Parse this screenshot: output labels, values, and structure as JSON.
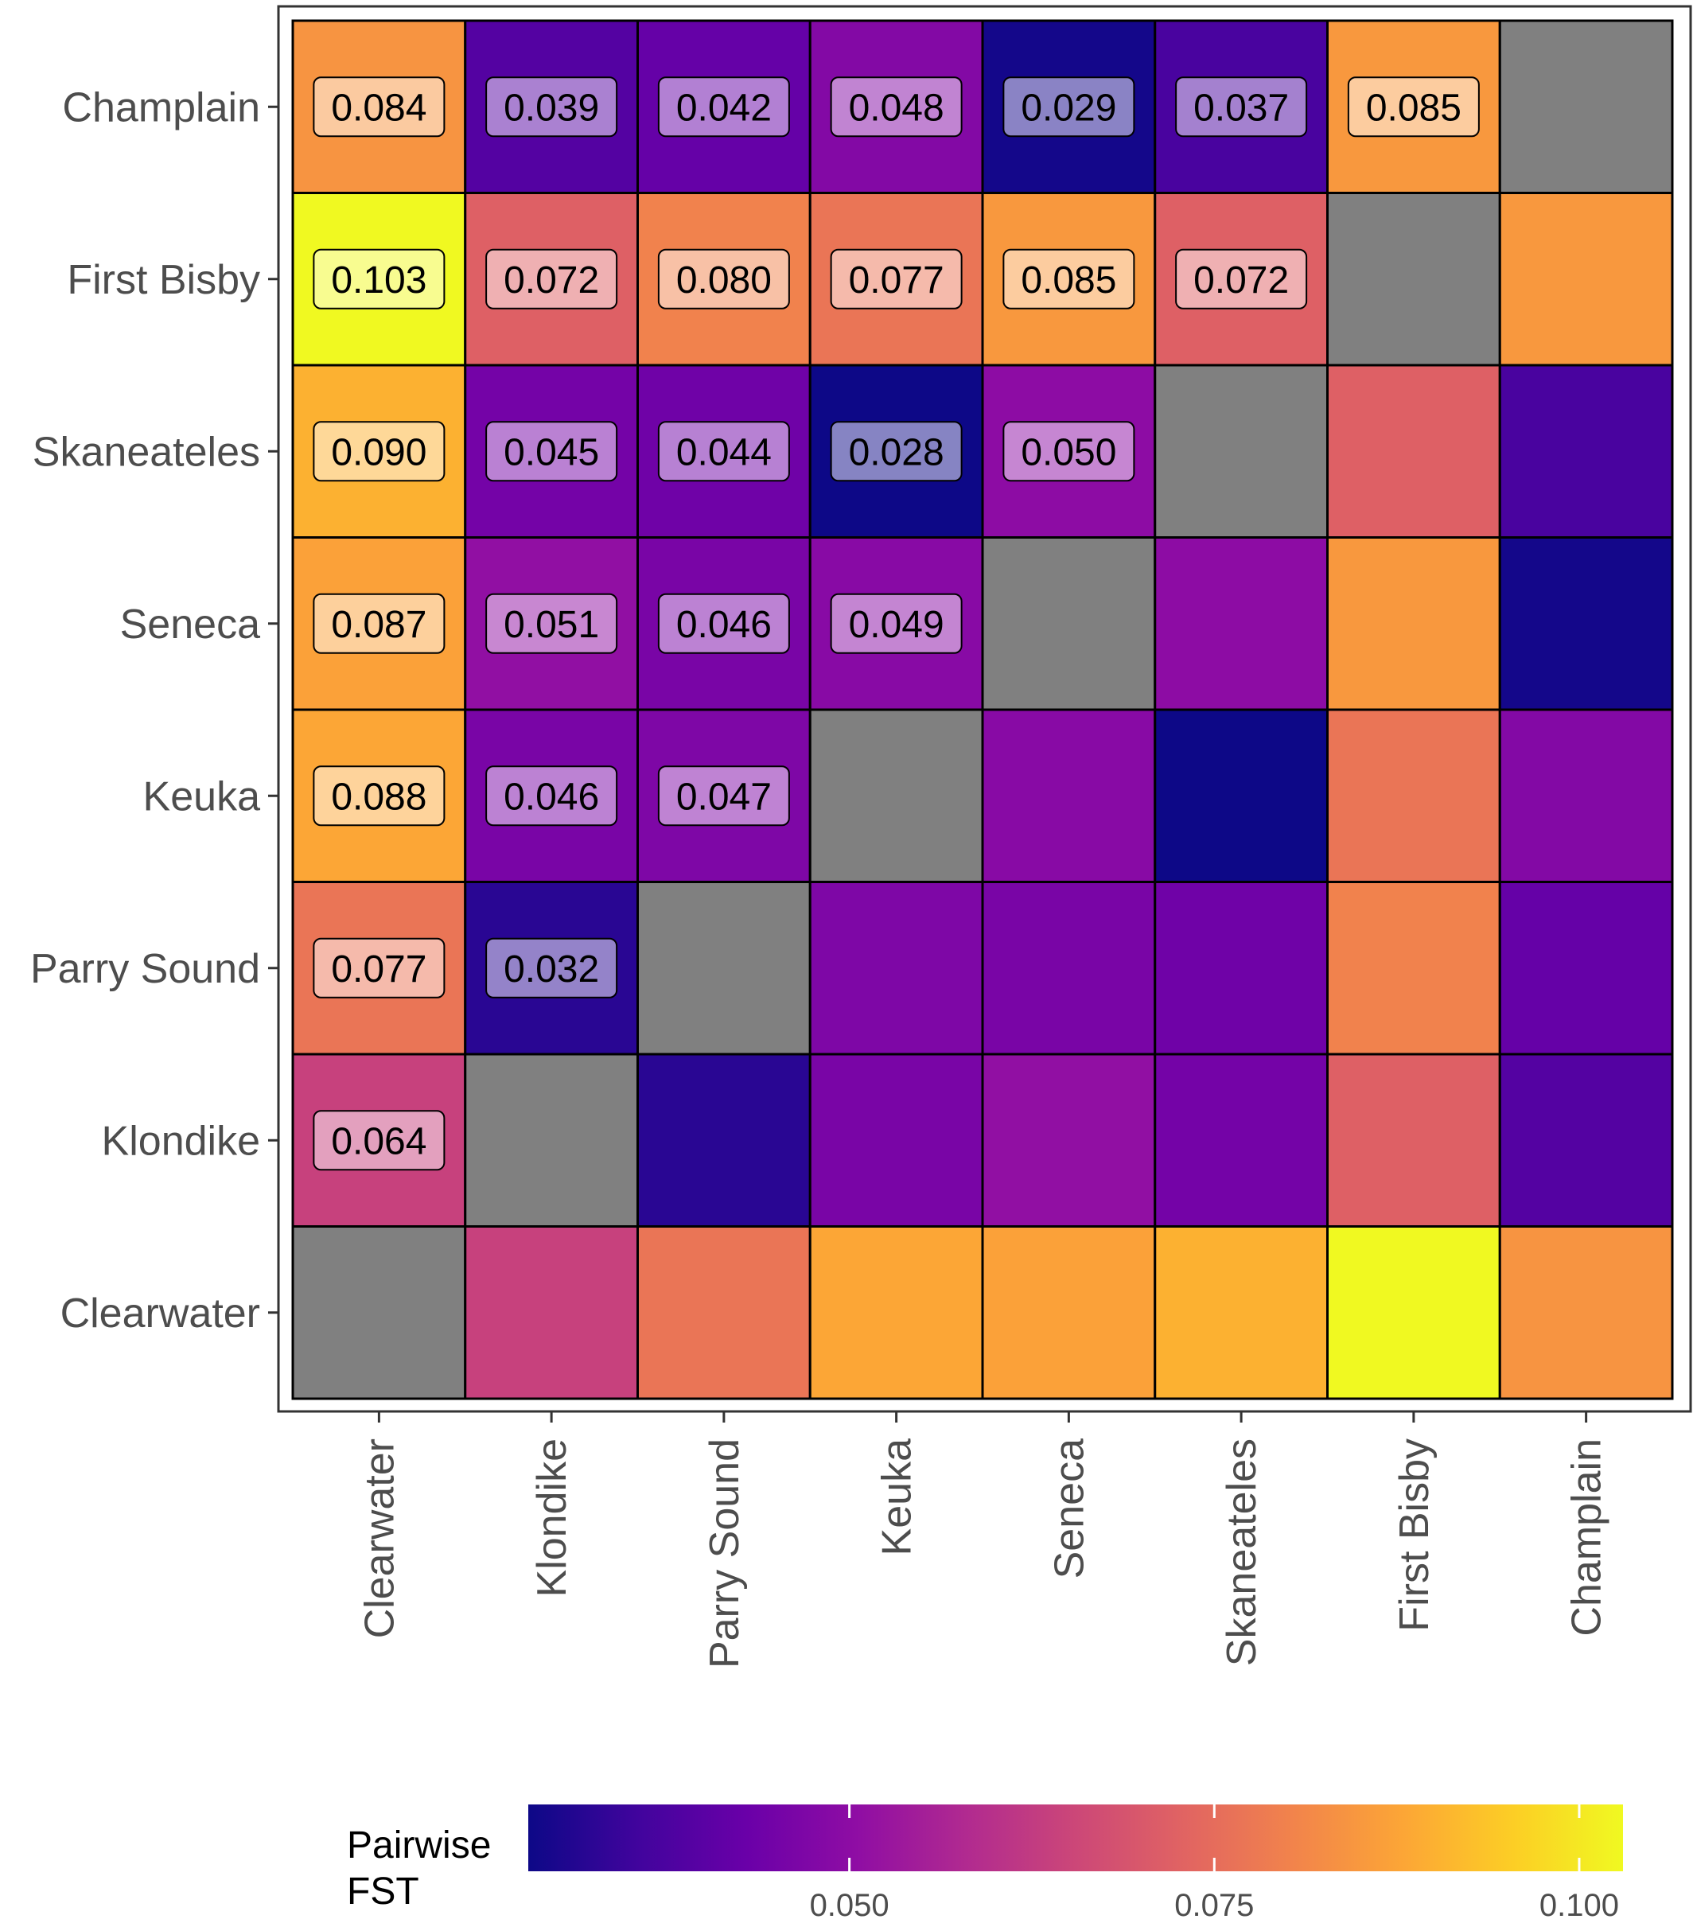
{
  "chart_data": {
    "type": "heatmap",
    "title": "",
    "xlabel": "",
    "ylabel": "",
    "x_categories": [
      "Clearwater",
      "Klondike",
      "Parry Sound",
      "Keuka",
      "Seneca",
      "Skaneateles",
      "First Bisby",
      "Champlain"
    ],
    "y_categories": [
      "Clearwater",
      "Klondike",
      "Parry Sound",
      "Keuka",
      "Seneca",
      "Skaneateles",
      "First Bisby",
      "Champlain"
    ],
    "values": [
      [
        null,
        0.064,
        0.077,
        0.088,
        0.087,
        0.09,
        0.103,
        0.084
      ],
      [
        0.064,
        null,
        0.032,
        0.046,
        0.051,
        0.045,
        0.072,
        0.039
      ],
      [
        0.077,
        0.032,
        null,
        0.047,
        0.046,
        0.044,
        0.08,
        0.042
      ],
      [
        0.088,
        0.046,
        0.047,
        null,
        0.049,
        0.028,
        0.077,
        0.048
      ],
      [
        0.087,
        0.051,
        0.046,
        0.049,
        null,
        0.05,
        0.085,
        0.029
      ],
      [
        0.09,
        0.045,
        0.044,
        0.028,
        0.05,
        null,
        0.072,
        0.037
      ],
      [
        0.103,
        0.072,
        0.08,
        0.077,
        0.085,
        0.072,
        null,
        0.085
      ],
      [
        0.084,
        0.039,
        0.042,
        0.048,
        0.029,
        0.037,
        0.085,
        null
      ]
    ],
    "labels": [
      {
        "x": "Clearwater",
        "y": "Champlain",
        "text": "0.084"
      },
      {
        "x": "Klondike",
        "y": "Champlain",
        "text": "0.039"
      },
      {
        "x": "Parry Sound",
        "y": "Champlain",
        "text": "0.042"
      },
      {
        "x": "Keuka",
        "y": "Champlain",
        "text": "0.048"
      },
      {
        "x": "Seneca",
        "y": "Champlain",
        "text": "0.029"
      },
      {
        "x": "Skaneateles",
        "y": "Champlain",
        "text": "0.037"
      },
      {
        "x": "First Bisby",
        "y": "Champlain",
        "text": "0.085"
      },
      {
        "x": "Clearwater",
        "y": "First Bisby",
        "text": "0.103"
      },
      {
        "x": "Klondike",
        "y": "First Bisby",
        "text": "0.072"
      },
      {
        "x": "Parry Sound",
        "y": "First Bisby",
        "text": "0.080"
      },
      {
        "x": "Keuka",
        "y": "First Bisby",
        "text": "0.077"
      },
      {
        "x": "Seneca",
        "y": "First Bisby",
        "text": "0.085"
      },
      {
        "x": "Skaneateles",
        "y": "First Bisby",
        "text": "0.072"
      },
      {
        "x": "Clearwater",
        "y": "Skaneateles",
        "text": "0.090"
      },
      {
        "x": "Klondike",
        "y": "Skaneateles",
        "text": "0.045"
      },
      {
        "x": "Parry Sound",
        "y": "Skaneateles",
        "text": "0.044"
      },
      {
        "x": "Keuka",
        "y": "Skaneateles",
        "text": "0.028"
      },
      {
        "x": "Seneca",
        "y": "Skaneateles",
        "text": "0.050"
      },
      {
        "x": "Clearwater",
        "y": "Seneca",
        "text": "0.087"
      },
      {
        "x": "Klondike",
        "y": "Seneca",
        "text": "0.051"
      },
      {
        "x": "Parry Sound",
        "y": "Seneca",
        "text": "0.046"
      },
      {
        "x": "Keuka",
        "y": "Seneca",
        "text": "0.049"
      },
      {
        "x": "Clearwater",
        "y": "Keuka",
        "text": "0.088"
      },
      {
        "x": "Klondike",
        "y": "Keuka",
        "text": "0.046"
      },
      {
        "x": "Parry Sound",
        "y": "Keuka",
        "text": "0.047"
      },
      {
        "x": "Clearwater",
        "y": "Parry Sound",
        "text": "0.077"
      },
      {
        "x": "Klondike",
        "y": "Parry Sound",
        "text": "0.032"
      },
      {
        "x": "Clearwater",
        "y": "Klondike",
        "text": "0.064"
      }
    ],
    "diagonal_color": "#808080",
    "colorscale": "plasma",
    "color_range": [
      0.028,
      0.103
    ],
    "legend": {
      "title_lines": [
        "Pairwise",
        "FST"
      ],
      "ticks": [
        "0.050",
        "0.075",
        "0.100"
      ],
      "tick_values": [
        0.05,
        0.075,
        0.1
      ],
      "position": "bottom"
    }
  }
}
